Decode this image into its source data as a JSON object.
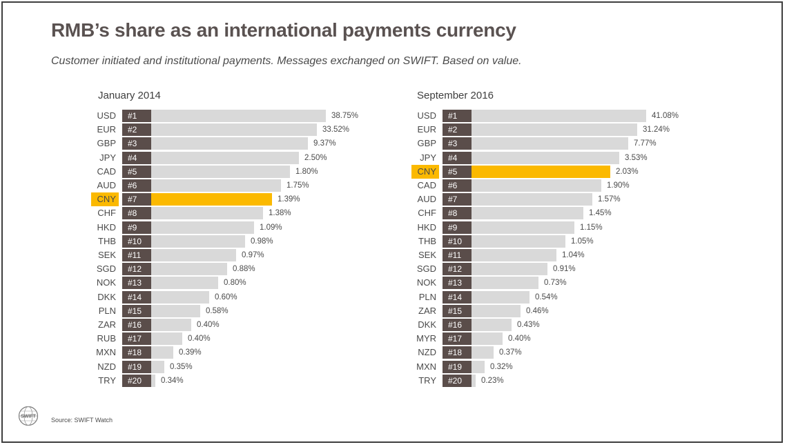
{
  "slide": {
    "title": "RMB’s share as an international payments currency",
    "subtitle": "Customer initiated and institutional payments. Messages exchanged on SWIFT. Based on value.",
    "source": "Source: SWIFT Watch",
    "logo_text": "SWIFT"
  },
  "colors": {
    "bar": "#d9d9d9",
    "rank_tag": "#5a4d4a",
    "highlight": "#fbb900"
  },
  "chart_data": [
    {
      "type": "bar",
      "orientation": "horizontal",
      "title": "January 2014",
      "highlight": "CNY",
      "categories": [
        "USD",
        "EUR",
        "GBP",
        "JPY",
        "CAD",
        "AUD",
        "CNY",
        "CHF",
        "HKD",
        "THB",
        "SEK",
        "SGD",
        "NOK",
        "DKK",
        "PLN",
        "ZAR",
        "RUB",
        "MXN",
        "NZD",
        "TRY"
      ],
      "ranks": [
        "#1",
        "#2",
        "#3",
        "#4",
        "#5",
        "#6",
        "#7",
        "#8",
        "#9",
        "#10",
        "#11",
        "#12",
        "#13",
        "#14",
        "#15",
        "#16",
        "#17",
        "#18",
        "#19",
        "#20"
      ],
      "values": [
        38.75,
        33.52,
        9.37,
        2.5,
        1.8,
        1.75,
        1.39,
        1.38,
        1.09,
        0.98,
        0.97,
        0.88,
        0.8,
        0.6,
        0.58,
        0.4,
        0.4,
        0.39,
        0.35,
        0.34
      ],
      "labels": [
        "38.75%",
        "33.52%",
        "9.37%",
        "2.50%",
        "1.80%",
        "1.75%",
        "1.39%",
        "1.38%",
        "1.09%",
        "0.98%",
        "0.97%",
        "0.88%",
        "0.80%",
        "0.60%",
        "0.58%",
        "0.40%",
        "0.40%",
        "0.39%",
        "0.35%",
        "0.34%"
      ],
      "scale": "rank (not proportional)"
    },
    {
      "type": "bar",
      "orientation": "horizontal",
      "title": "September 2016",
      "highlight": "CNY",
      "categories": [
        "USD",
        "EUR",
        "GBP",
        "JPY",
        "CNY",
        "CAD",
        "AUD",
        "CHF",
        "HKD",
        "THB",
        "SEK",
        "SGD",
        "NOK",
        "PLN",
        "ZAR",
        "DKK",
        "MYR",
        "NZD",
        "MXN",
        "TRY"
      ],
      "ranks": [
        "#1",
        "#2",
        "#3",
        "#4",
        "#5",
        "#6",
        "#7",
        "#8",
        "#9",
        "#10",
        "#11",
        "#12",
        "#13",
        "#14",
        "#15",
        "#16",
        "#17",
        "#18",
        "#19",
        "#20"
      ],
      "values": [
        41.08,
        31.24,
        7.77,
        3.53,
        2.03,
        1.9,
        1.57,
        1.45,
        1.15,
        1.05,
        1.04,
        0.91,
        0.73,
        0.54,
        0.46,
        0.43,
        0.4,
        0.37,
        0.32,
        0.23
      ],
      "labels": [
        "41.08%",
        "31.24%",
        "7.77%",
        "3.53%",
        "2.03%",
        "1.90%",
        "1.57%",
        "1.45%",
        "1.15%",
        "1.05%",
        "1.04%",
        "0.91%",
        "0.73%",
        "0.54%",
        "0.46%",
        "0.43%",
        "0.40%",
        "0.37%",
        "0.32%",
        "0.23%"
      ],
      "scale": "rank (not proportional)"
    }
  ]
}
